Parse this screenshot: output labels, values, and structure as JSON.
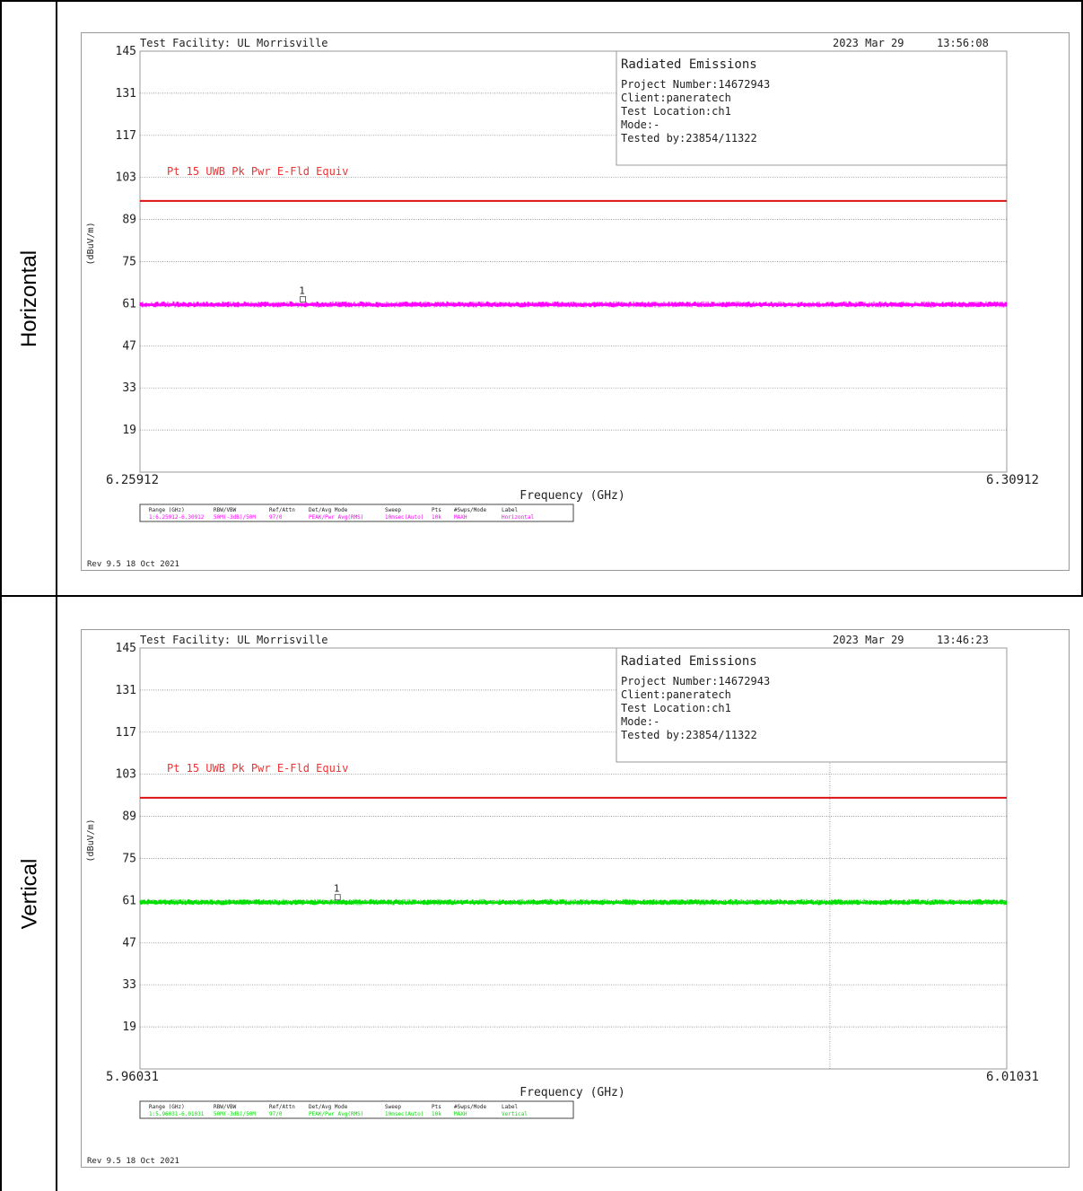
{
  "rows": [
    {
      "label": "Horizontal"
    },
    {
      "label": "Vertical"
    }
  ],
  "chart_data": [
    {
      "type": "line",
      "header_left": "Test Facility:  UL Morrisville",
      "header_date": "2023 Mar 29",
      "header_time": "13:56:08",
      "info_title": "Radiated Emissions",
      "info_lines": [
        "Project Number:14672943",
        "Client:paneratech",
        "Test Location:ch1",
        "Mode:-",
        "Tested by:23854/11322"
      ],
      "ylabel": "(dBuV/m)",
      "xlabel": "Frequency (GHz)",
      "yticks": [
        "145",
        "131",
        "117",
        "103",
        "89",
        "75",
        "61",
        "47",
        "33",
        "19"
      ],
      "ylim": [
        5,
        145
      ],
      "xlim": [
        6.25912,
        6.30912
      ],
      "x_start_label": "6.25912",
      "x_end_label": "6.30912",
      "limit_line": {
        "label": "Pt 15 UWB Pk Pwr E-Fld Equiv",
        "value": 95.2,
        "color": "#dd1111"
      },
      "series": [
        {
          "level": 60.6,
          "color": "#ff00ff"
        }
      ],
      "marker": {
        "label": "1",
        "x": 6.26852,
        "y": 62.2
      },
      "vertical_marker": null,
      "legend_headers": [
        "Range (GHz)",
        "RBW/VBW",
        "Ref/Attn",
        "Det/Avg Mode",
        "Sweep",
        "Pts",
        "#Swps/Mode",
        "Label"
      ],
      "legend_values": [
        "1:6.25912-6.30912",
        "50M(-3dB)/50M",
        "97/0",
        "PEAK/Pwr Avg(RMS)",
        "10msec(Auto)",
        "10k",
        "MAXH",
        "Horizontal"
      ],
      "legend_color": "#ff00ff",
      "footer": "Rev 9.5 18 Oct 2021"
    },
    {
      "type": "line",
      "header_left": "Test Facility:  UL Morrisville",
      "header_date": "2023 Mar 29",
      "header_time": "13:46:23",
      "info_title": "Radiated Emissions",
      "info_lines": [
        "Project Number:14672943",
        "Client:paneratech",
        "Test Location:ch1",
        "Mode:-",
        "Tested by:23854/11322"
      ],
      "ylabel": "(dBuV/m)",
      "xlabel": "Frequency (GHz)",
      "yticks": [
        "145",
        "131",
        "117",
        "103",
        "89",
        "75",
        "61",
        "47",
        "33",
        "19"
      ],
      "ylim": [
        5,
        145
      ],
      "xlim": [
        5.96031,
        6.01031
      ],
      "x_start_label": "5.96031",
      "x_end_label": "6.01031",
      "limit_line": {
        "label": "Pt 15 UWB Pk Pwr E-Fld Equiv",
        "value": 95.2,
        "color": "#dd1111"
      },
      "series": [
        {
          "level": 60.3,
          "color": "#00e000"
        }
      ],
      "marker": {
        "label": "1",
        "x": 5.97171,
        "y": 61.8
      },
      "vertical_marker": 6.00011,
      "legend_headers": [
        "Range (GHz)",
        "RBW/VBW",
        "Ref/Attn",
        "Det/Avg Mode",
        "Sweep",
        "Pts",
        "#Swps/Mode",
        "Label"
      ],
      "legend_values": [
        "1:5.96031-6.01031",
        "50M(-3dB)/50M",
        "97/0",
        "PEAK/Pwr Avg(RMS)",
        "10msec(Auto)",
        "10k",
        "MAXH",
        "Vertical"
      ],
      "legend_color": "#00e000",
      "footer": "Rev 9.5 18 Oct 2021"
    }
  ]
}
